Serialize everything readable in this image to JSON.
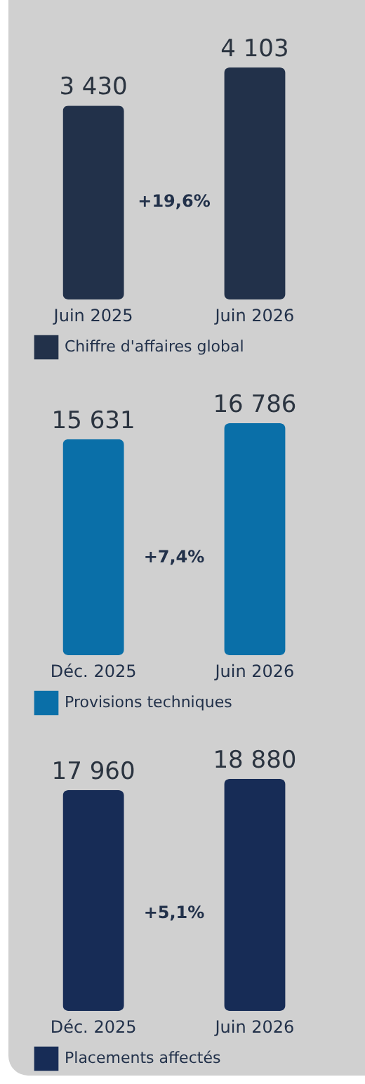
{
  "chart_data": [
    {
      "type": "bar",
      "categories": [
        "Juin 2025",
        "Juin 2026"
      ],
      "series": [
        {
          "name": "Chiffre d'affaires global",
          "color": "#22314a",
          "values": [
            3430,
            4103
          ]
        }
      ],
      "data_labels": true,
      "legend": "bottom left",
      "annotations": [
        "+19,6%"
      ]
    },
    {
      "type": "bar",
      "categories": [
        "Déc. 2025",
        "Juin 2026"
      ],
      "series": [
        {
          "name": "Provisions techniques",
          "color": "#0a6fa8",
          "values": [
            15631,
            16786
          ]
        }
      ],
      "data_labels": true,
      "legend": "bottom left",
      "annotations": [
        "+7,4%"
      ]
    },
    {
      "type": "bar",
      "categories": [
        "Déc. 2025",
        "Juin 2026"
      ],
      "series": [
        {
          "name": "Placements affectés",
          "color": "#172c56",
          "values": [
            17960,
            18880
          ]
        }
      ],
      "data_labels": true,
      "legend": "bottom left",
      "annotations": [
        "+5,1%"
      ]
    }
  ]
}
